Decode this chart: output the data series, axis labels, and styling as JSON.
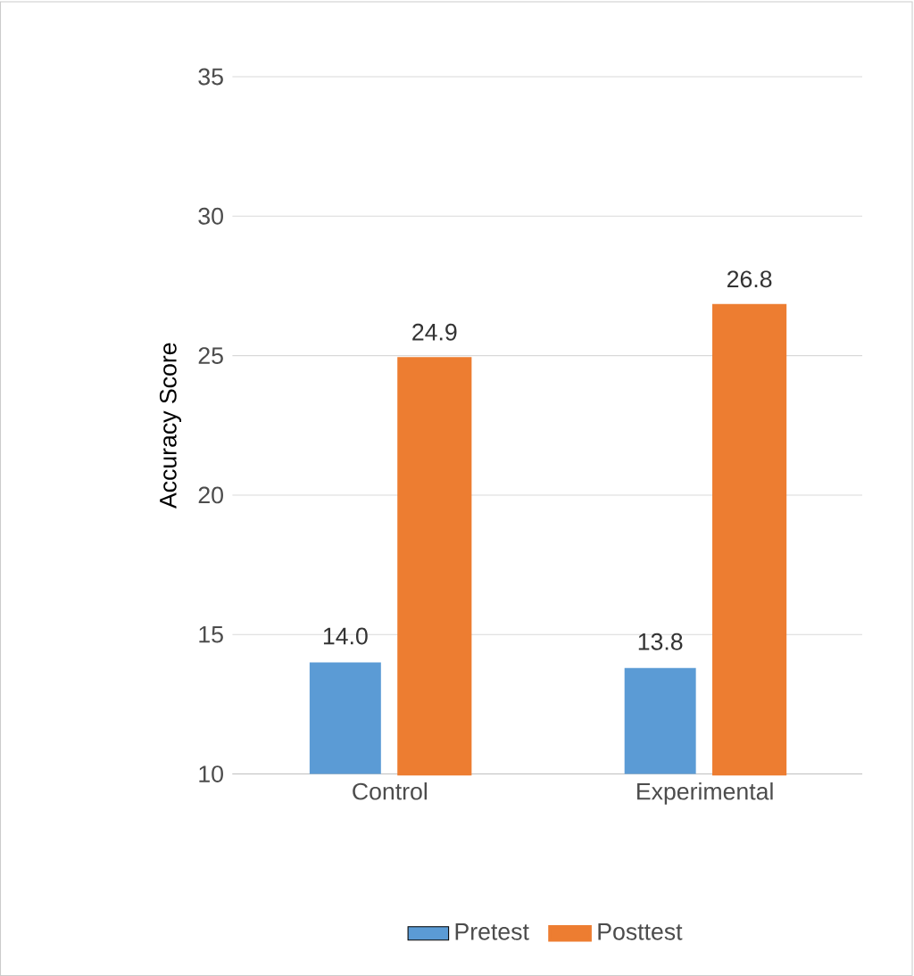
{
  "chart_data": {
    "type": "bar",
    "ylabel": "Accuracy Score",
    "categories": [
      "Control",
      "Experimental"
    ],
    "series": [
      {
        "name": "Pretest",
        "color": "#5b9bd5",
        "values": [
          14.0,
          13.8
        ],
        "value_labels": [
          "14.0",
          "13.8"
        ]
      },
      {
        "name": "Posttest",
        "color": "#ed7d31",
        "values": [
          24.9,
          26.8
        ],
        "value_labels": [
          "24.9",
          "26.8"
        ]
      }
    ],
    "ylim": [
      10,
      35
    ],
    "yticks": [
      10,
      15,
      20,
      25,
      30,
      35
    ],
    "grid": "y",
    "legend": "bottom"
  }
}
